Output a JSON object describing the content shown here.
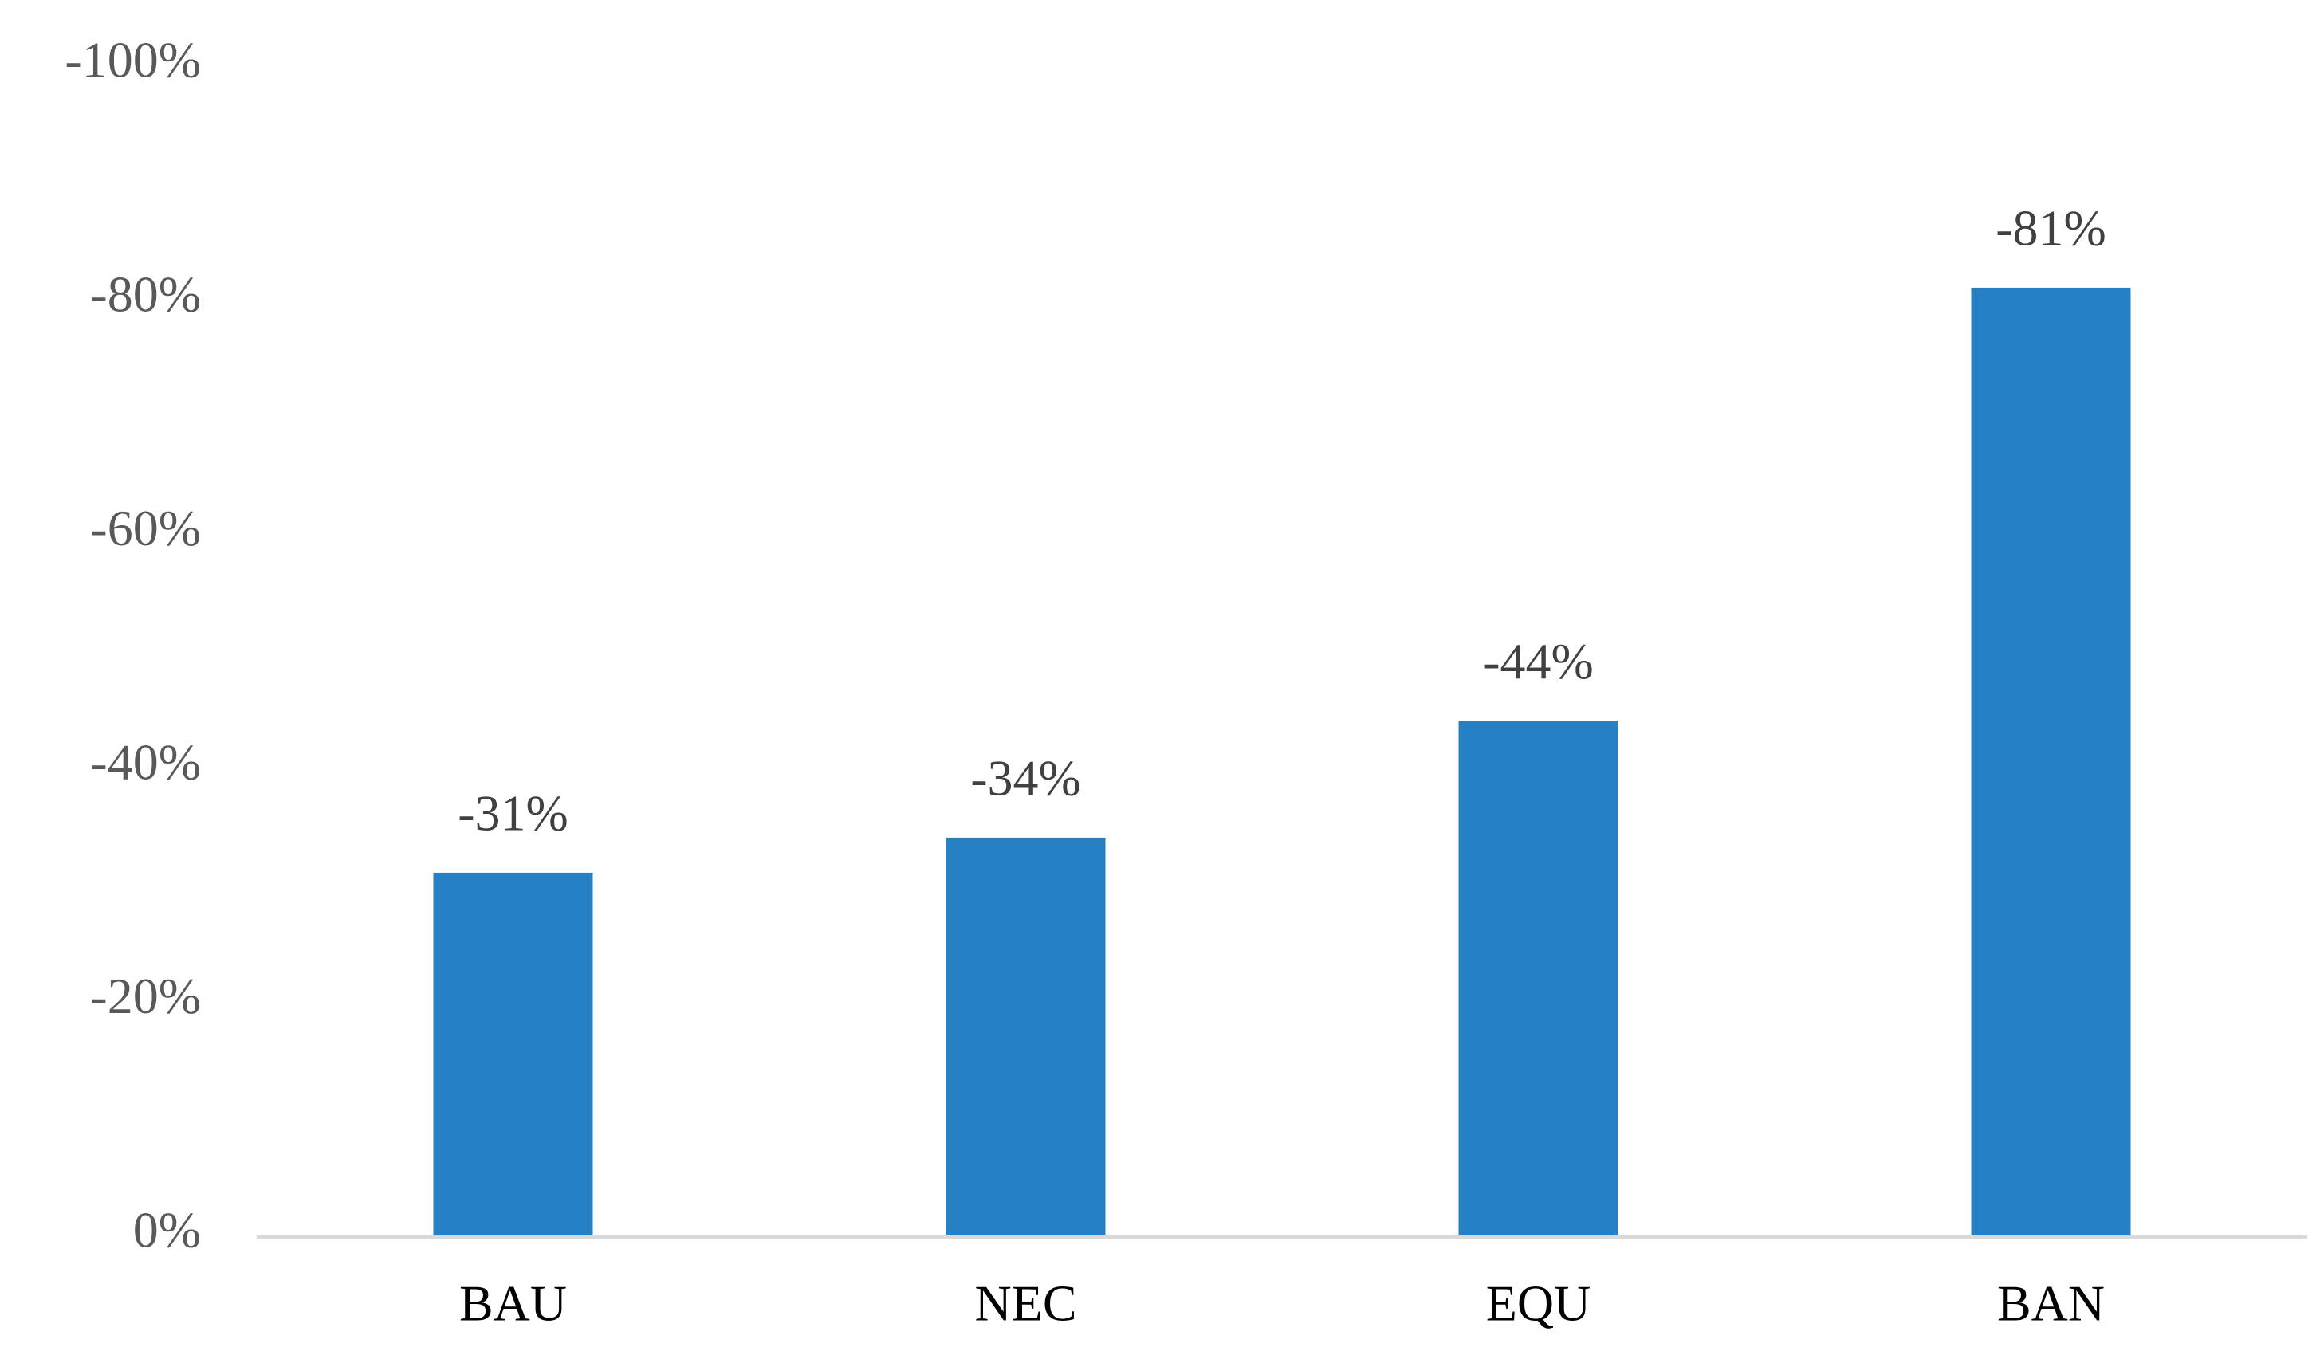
{
  "chart_data": {
    "type": "bar",
    "categories": [
      "BAU",
      "NEC",
      "EQU",
      "BAN"
    ],
    "values": [
      -31,
      -34,
      -44,
      -81
    ],
    "value_labels": [
      "-31%",
      "-34%",
      "-44%",
      "-81%"
    ],
    "color": "#2581c4",
    "ylim": [
      0,
      -100
    ],
    "yticks": [
      {
        "value": 0,
        "label": "0%"
      },
      {
        "value": -20,
        "label": "-20%"
      },
      {
        "value": -40,
        "label": "-40%"
      },
      {
        "value": -60,
        "label": "-60%"
      },
      {
        "value": -80,
        "label": "-80%"
      },
      {
        "value": -100,
        "label": "-100%"
      }
    ],
    "grid": false
  }
}
